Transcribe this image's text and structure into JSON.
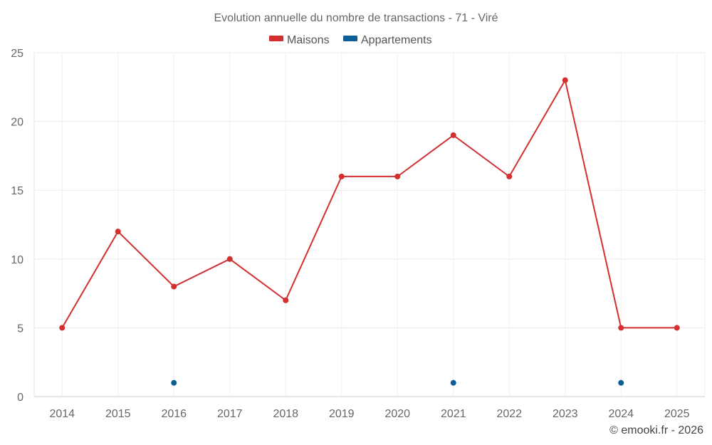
{
  "chart_data": {
    "type": "line",
    "title": "Evolution annuelle du nombre de transactions - 71 - Viré",
    "categories": [
      "2014",
      "2015",
      "2016",
      "2017",
      "2018",
      "2019",
      "2020",
      "2021",
      "2022",
      "2023",
      "2024",
      "2025"
    ],
    "series": [
      {
        "name": "Maisons",
        "color": "#d32f2f",
        "values": [
          5,
          12,
          8,
          10,
          7,
          16,
          16,
          19,
          16,
          23,
          5,
          5
        ]
      },
      {
        "name": "Appartements",
        "color": "#0b5e96",
        "values": [
          null,
          null,
          1,
          null,
          null,
          null,
          null,
          1,
          null,
          null,
          1,
          null
        ]
      }
    ],
    "ylim": [
      0,
      25
    ],
    "yticks": [
      0,
      5,
      10,
      15,
      20,
      25
    ],
    "xlabel": "",
    "ylabel": "",
    "grid": true,
    "legend": "top-center"
  },
  "credit": "© emooki.fr - 2026"
}
